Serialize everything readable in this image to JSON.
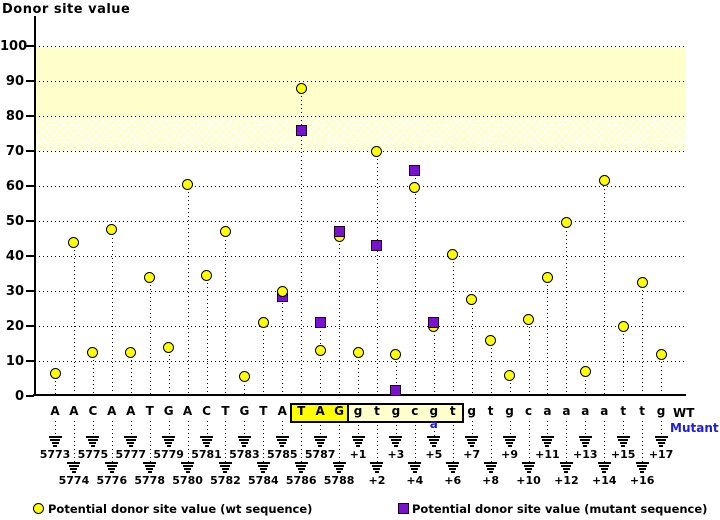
{
  "title": "Donor site value",
  "axis": {
    "y_ticks": [
      100,
      90,
      80,
      70,
      60,
      50,
      40,
      30,
      20,
      10,
      0
    ]
  },
  "labels": {
    "wt": "WT",
    "mutant": "Mutant"
  },
  "legend": {
    "wt": "Potential donor site value (wt sequence)",
    "mutant": "Potential donor site value (mutant sequence)"
  },
  "colors": {
    "wt_marker": "#ffff00",
    "mutant_marker": "#7b11d0",
    "band": "#ffffcc",
    "exon_box_bg": "#ffff00",
    "intron_box_bg": "#ffffcc",
    "mutant_text": "#1c1ce0"
  },
  "chart_data": {
    "type": "stem-scatter",
    "title": "Donor site value",
    "ylabel": "Donor site value",
    "ylim": [
      0,
      100
    ],
    "grid": "dotted-horizontal",
    "highlight_band": [
      80,
      100
    ],
    "hatch_band": [
      70,
      80
    ],
    "legend_position": "bottom",
    "series_names": [
      "wt sequence",
      "mutant sequence"
    ],
    "columns": [
      {
        "pos": "5773",
        "base": "A",
        "wt": 6.5,
        "mutant": null,
        "box": null
      },
      {
        "pos": "5774",
        "base": "A",
        "wt": 44,
        "mutant": null,
        "box": null
      },
      {
        "pos": "5775",
        "base": "C",
        "wt": 12.5,
        "mutant": null,
        "box": null
      },
      {
        "pos": "5776",
        "base": "A",
        "wt": 47.5,
        "mutant": null,
        "box": null
      },
      {
        "pos": "5777",
        "base": "A",
        "wt": 12.5,
        "mutant": null,
        "box": null
      },
      {
        "pos": "5778",
        "base": "T",
        "wt": 34,
        "mutant": null,
        "box": null
      },
      {
        "pos": "5779",
        "base": "G",
        "wt": 14,
        "mutant": null,
        "box": null
      },
      {
        "pos": "5780",
        "base": "A",
        "wt": 60.5,
        "mutant": null,
        "box": null
      },
      {
        "pos": "5781",
        "base": "C",
        "wt": 34.5,
        "mutant": null,
        "box": null
      },
      {
        "pos": "5782",
        "base": "T",
        "wt": 47,
        "mutant": null,
        "box": null
      },
      {
        "pos": "5783",
        "base": "G",
        "wt": 5.5,
        "mutant": null,
        "box": null
      },
      {
        "pos": "5784",
        "base": "T",
        "wt": 21,
        "mutant": null,
        "box": null
      },
      {
        "pos": "5785",
        "base": "A",
        "wt": 30,
        "mutant": 28.5,
        "box": null
      },
      {
        "pos": "5786",
        "base": "T",
        "wt": 88,
        "mutant": 76,
        "box": "exon"
      },
      {
        "pos": "5787",
        "base": "A",
        "wt": 13,
        "mutant": 21,
        "box": "exon"
      },
      {
        "pos": "5788",
        "base": "G",
        "wt": 45.5,
        "mutant": 47,
        "box": "exon"
      },
      {
        "pos": "+1",
        "base": "g",
        "wt": 12.5,
        "mutant": null,
        "box": "intron"
      },
      {
        "pos": "+2",
        "base": "t",
        "wt": 70,
        "mutant": 43,
        "box": "intron"
      },
      {
        "pos": "+3",
        "base": "g",
        "wt": 12,
        "mutant": 1.5,
        "box": "intron"
      },
      {
        "pos": "+4",
        "base": "c",
        "wt": 59.5,
        "mutant": 64.5,
        "box": "intron"
      },
      {
        "pos": "+5",
        "base": "g",
        "wt": 20,
        "mutant": 21,
        "box": "intron",
        "mutant_base": "a"
      },
      {
        "pos": "+6",
        "base": "t",
        "wt": 40.5,
        "mutant": null,
        "box": "intron"
      },
      {
        "pos": "+7",
        "base": "g",
        "wt": 27.5,
        "mutant": null,
        "box": null
      },
      {
        "pos": "+8",
        "base": "t",
        "wt": 16,
        "mutant": null,
        "box": null
      },
      {
        "pos": "+9",
        "base": "g",
        "wt": 6,
        "mutant": null,
        "box": null
      },
      {
        "pos": "+10",
        "base": "c",
        "wt": 22,
        "mutant": null,
        "box": null
      },
      {
        "pos": "+11",
        "base": "a",
        "wt": 34,
        "mutant": null,
        "box": null
      },
      {
        "pos": "+12",
        "base": "a",
        "wt": 49.5,
        "mutant": null,
        "box": null
      },
      {
        "pos": "+13",
        "base": "a",
        "wt": 7,
        "mutant": null,
        "box": null
      },
      {
        "pos": "+14",
        "base": "a",
        "wt": 61.5,
        "mutant": null,
        "box": null
      },
      {
        "pos": "+15",
        "base": "t",
        "wt": 20,
        "mutant": null,
        "box": null
      },
      {
        "pos": "+16",
        "base": "t",
        "wt": 32.5,
        "mutant": null,
        "box": null
      },
      {
        "pos": "+17",
        "base": "g",
        "wt": 12,
        "mutant": null,
        "box": null
      }
    ]
  }
}
